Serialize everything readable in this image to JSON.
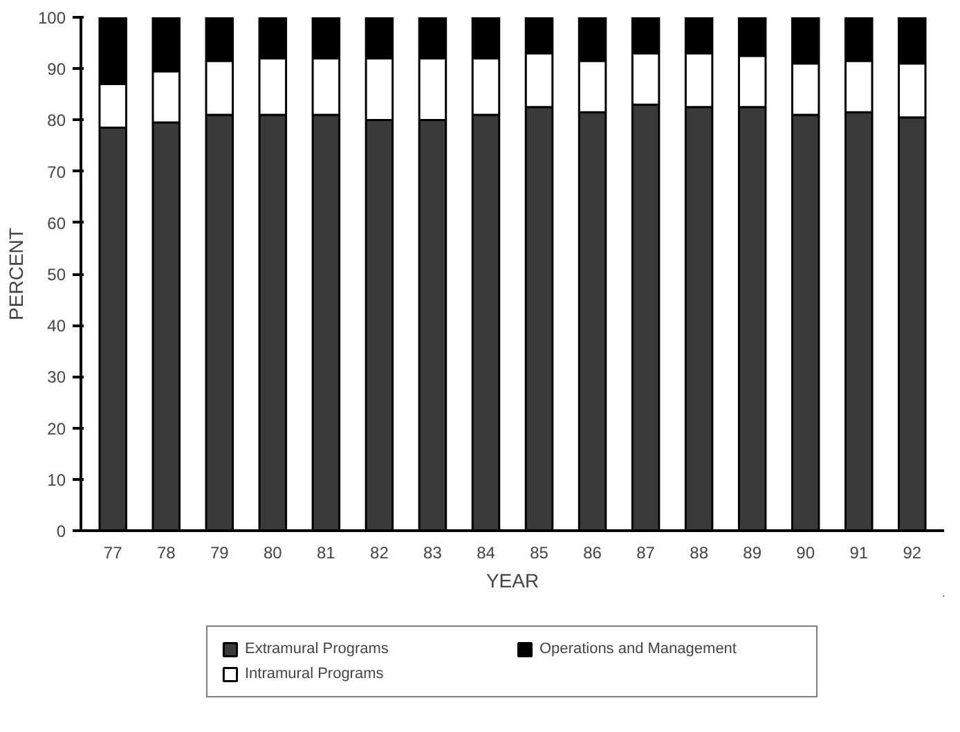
{
  "chart_data": {
    "type": "bar",
    "stacked": true,
    "xlabel": "YEAR",
    "ylabel": "PERCENT",
    "categories": [
      "77",
      "78",
      "79",
      "80",
      "81",
      "82",
      "83",
      "84",
      "85",
      "86",
      "87",
      "88",
      "89",
      "90",
      "91",
      "92"
    ],
    "series": [
      {
        "name": "Extramural Programs",
        "color": "#3a3a3a",
        "values": [
          78.5,
          79.5,
          81,
          81,
          81,
          80,
          80,
          81,
          82.5,
          81.5,
          83,
          82.5,
          82.5,
          81,
          81.5,
          80.5
        ]
      },
      {
        "name": "Intramural Programs",
        "color": "#ffffff",
        "values": [
          8.5,
          10,
          10.5,
          11,
          11,
          12,
          12,
          11,
          10.5,
          10,
          10,
          10.5,
          10,
          10,
          10,
          10.5
        ]
      },
      {
        "name": "Operations and Management",
        "color": "#000000",
        "values": [
          13,
          10.5,
          8.5,
          8,
          8,
          8,
          8,
          8,
          7,
          8.5,
          7,
          7,
          7.5,
          9,
          8.5,
          9
        ]
      }
    ],
    "ylim": [
      0,
      100
    ],
    "yticks": [
      0,
      10,
      20,
      30,
      40,
      50,
      60,
      70,
      80,
      90,
      100
    ],
    "grid": false,
    "legend": "bottom"
  }
}
